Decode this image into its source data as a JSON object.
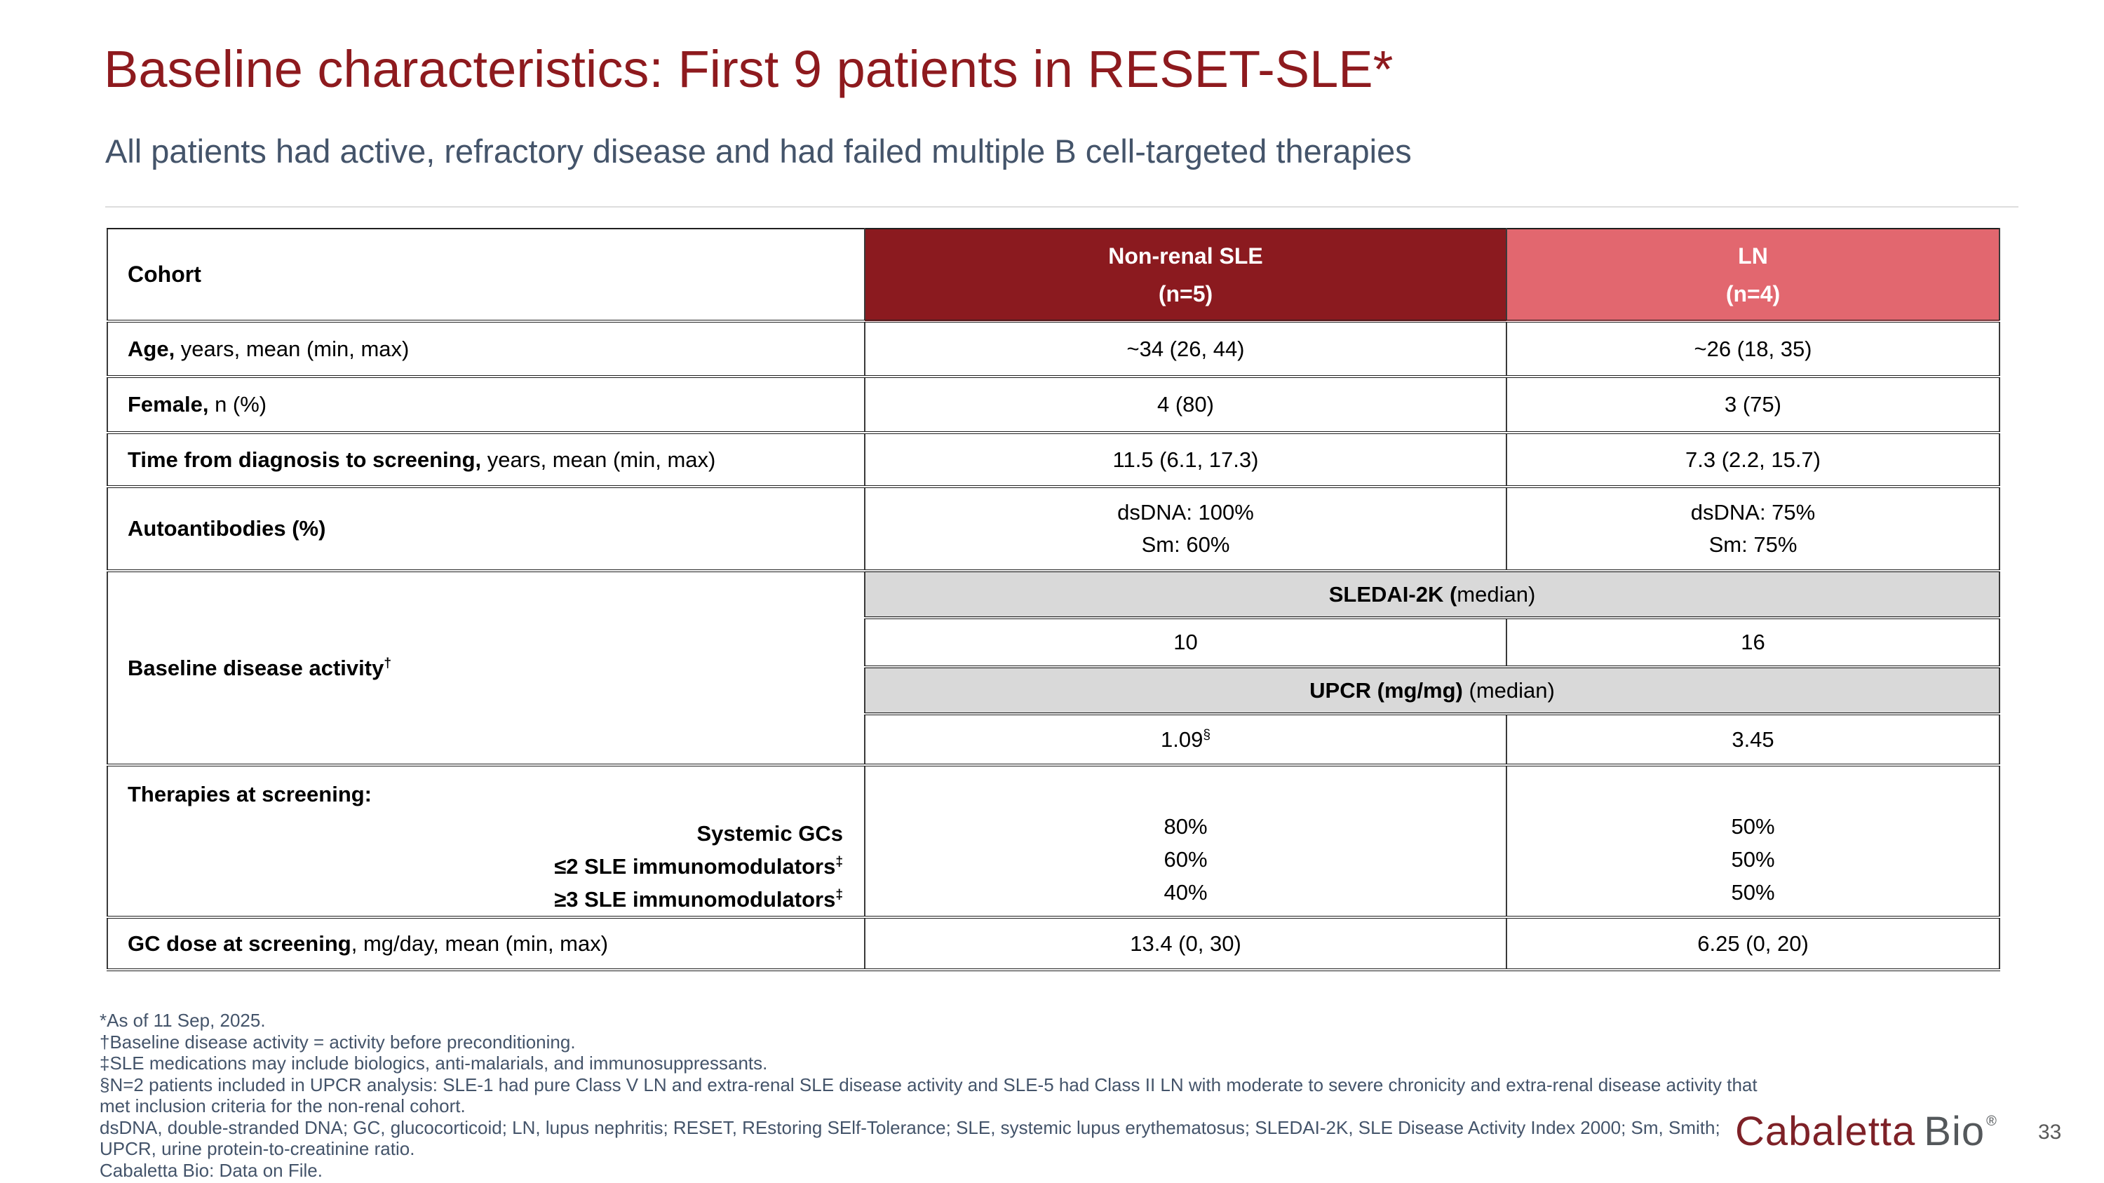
{
  "slide": {
    "title": "Baseline characteristics: First 9 patients in RESET-SLE*",
    "subtitle": "All patients had active, refractory disease and had failed multiple B cell-targeted therapies",
    "page_number": "33"
  },
  "colors": {
    "title_red": "#8E1A1E",
    "header_dark_red": "#8B1A1F",
    "header_salmon": "#E2676F",
    "subtitle_slate": "#44546A",
    "banner_gray": "#D9D9D9",
    "logo_red": "#7E2127",
    "logo_gray": "#54585B"
  },
  "table": {
    "header": {
      "cohort": "Cohort",
      "col1_line1": "Non-renal SLE",
      "col1_line2": "(n=5)",
      "col2_line1": "LN",
      "col2_line2": "(n=4)"
    },
    "rows": {
      "age": {
        "label_bold": "Age,",
        "label_rest": " years, mean (min, max)",
        "col1": "~34 (26, 44)",
        "col2": "~26 (18, 35)"
      },
      "female": {
        "label_bold": "Female,",
        "label_rest": " n (%)",
        "col1": "4 (80)",
        "col2": "3 (75)"
      },
      "time": {
        "label_bold": "Time from diagnosis to screening,",
        "label_rest": " years, mean (min, max)",
        "col1": "11.5 (6.1, 17.3)",
        "col2": "7.3 (2.2, 15.7)"
      },
      "autoantibodies": {
        "label_bold": "Autoantibodies (%)",
        "col1_line1": "dsDNA: 100%",
        "col1_line2": "Sm: 60%",
        "col2_line1": "dsDNA: 75%",
        "col2_line2": "Sm: 75%"
      },
      "baseline_activity": {
        "label_bold": "Baseline disease activity",
        "label_sup": "†",
        "sledai_banner_bold": "SLEDAI-2K (",
        "sledai_banner_rest": "median)",
        "sledai_col1": "10",
        "sledai_col2": "16",
        "upcr_banner_bold": "UPCR (mg/mg)",
        "upcr_banner_rest": " (median)",
        "upcr_col1": "1.09",
        "upcr_col1_sup": "§",
        "upcr_col2": "3.45"
      },
      "therapies": {
        "heading": "Therapies at screening:",
        "sub1": "Systemic GCs",
        "sub2": "≤2 SLE immunomodulators",
        "sub2_sup": "‡",
        "sub3": "≥3 SLE immunomodulators",
        "sub3_sup": "‡",
        "col1": [
          "80%",
          "60%",
          "40%"
        ],
        "col2": [
          "50%",
          "50%",
          "50%"
        ]
      },
      "gc_dose": {
        "label_bold": "GC dose at screening",
        "label_rest": ", mg/day, mean (min, max)",
        "col1": "13.4 (0, 30)",
        "col2": "6.25 (0, 20)"
      }
    }
  },
  "footnotes": {
    "lines": [
      "*As of 11 Sep, 2025.",
      "†Baseline disease activity = activity before preconditioning.",
      "‡SLE medications may include biologics, anti-malarials, and immunosuppressants.",
      "§N=2 patients included in UPCR analysis: SLE-1 had pure Class V LN and extra-renal SLE disease activity and SLE-5 had Class II LN with moderate to severe chronicity and extra-renal disease activity that",
      "met inclusion criteria for the non-renal cohort.",
      "dsDNA, double-stranded DNA; GC, glucocorticoid; LN, lupus nephritis; RESET, REstoring SElf-Tolerance; SLE, systemic lupus erythematosus; SLEDAI-2K, SLE Disease Activity Index 2000; Sm, Smith;",
      "UPCR, urine protein-to-creatinine ratio.",
      "Cabaletta Bio: Data on File."
    ]
  },
  "footer": {
    "logo_word1": "Cabaletta",
    "logo_word2": "Bio",
    "logo_reg": "®",
    "page_number": "33"
  }
}
